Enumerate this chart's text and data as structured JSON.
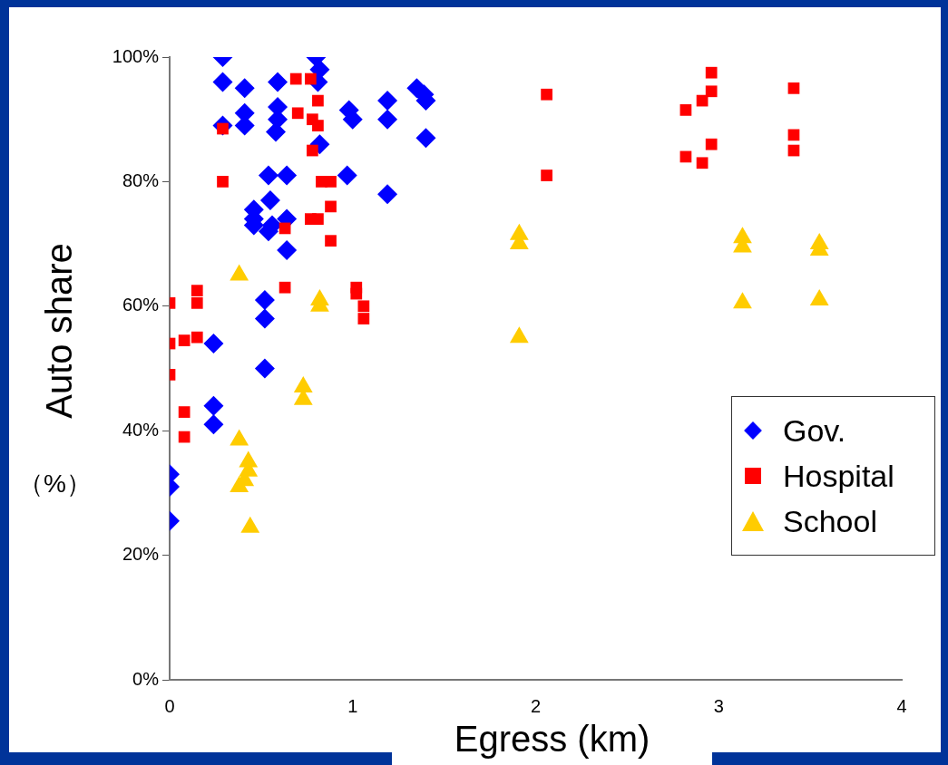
{
  "chart_data": {
    "type": "scatter",
    "xlabel": "Egress (km)",
    "ylabel": "Auto share",
    "annotations": [
      "（%）"
    ],
    "xlim": [
      0,
      4
    ],
    "xticks": [
      0,
      1,
      2,
      3,
      4
    ],
    "ylim": [
      0,
      100
    ],
    "yticks": [
      {
        "value": 0,
        "label": "0%"
      },
      {
        "value": 20,
        "label": "20%"
      },
      {
        "value": 40,
        "label": "40%"
      },
      {
        "value": 60,
        "label": "60%"
      },
      {
        "value": 80,
        "label": "80%"
      },
      {
        "value": 100,
        "label": "100%"
      }
    ],
    "grid": false,
    "legend": "right",
    "series": [
      {
        "name": "Gov.",
        "color": "#0000ff",
        "marker": "diamond",
        "x": [
          0.29,
          0.29,
          0.41,
          0.29,
          0.41,
          0.41,
          0.59,
          0.59,
          0.59,
          0.58,
          0.8,
          0.82,
          0.81,
          0.82,
          0.98,
          1.0,
          1.19,
          1.19,
          1.35,
          1.39,
          1.4,
          1.4,
          0.97,
          1.19,
          0.54,
          0.64,
          0.55,
          0.46,
          0.46,
          0.46,
          0.56,
          0.64,
          0.64,
          0.54,
          0.52,
          0.52,
          0.52,
          0.24,
          0.24,
          0.24,
          0,
          0,
          0
        ],
        "values": [
          100,
          96,
          95,
          89,
          91,
          89,
          96,
          92,
          90,
          88,
          100,
          98,
          96,
          86,
          91.5,
          90,
          93,
          90,
          95,
          94,
          93,
          87,
          81,
          78,
          81,
          81,
          77,
          75.5,
          74,
          73,
          73,
          74,
          69,
          72,
          61,
          58,
          50,
          54,
          44,
          41,
          33,
          31,
          25.5
        ]
      },
      {
        "name": "Hospital",
        "color": "#ff0000",
        "marker": "square",
        "x": [
          0.29,
          0.29,
          0.69,
          0.77,
          0.81,
          0.7,
          0.78,
          0.81,
          0.78,
          0.83,
          0.88,
          0.88,
          0.77,
          0.81,
          0.63,
          0.88,
          0.63,
          1.02,
          1.02,
          1.06,
          1.06,
          0.15,
          0.15,
          0,
          0,
          0.08,
          0.15,
          0,
          0.08,
          0.08,
          2.06,
          2.06,
          2.82,
          2.82,
          2.91,
          2.91,
          2.96,
          2.96,
          2.96,
          3.41,
          3.41,
          3.41
        ],
        "values": [
          88.5,
          80,
          96.5,
          96.5,
          93,
          91,
          90,
          89,
          85,
          80,
          80,
          76,
          74,
          74,
          72.5,
          70.5,
          63,
          63,
          62,
          60,
          58,
          62.5,
          60.5,
          60.5,
          54,
          54.5,
          55,
          49,
          43,
          39,
          94,
          81,
          91.5,
          84,
          93,
          83,
          97.5,
          94.5,
          86,
          95,
          87.5,
          85
        ]
      },
      {
        "name": "School",
        "color": "#ffcc00",
        "marker": "triangle",
        "x": [
          0.38,
          0.82,
          0.82,
          0.38,
          0.43,
          0.43,
          0.41,
          0.38,
          0.44,
          0.73,
          0.73,
          1.91,
          1.91,
          1.91,
          3.13,
          3.13,
          3.13,
          3.55,
          3.55,
          3.55
        ],
        "values": [
          65,
          61,
          60,
          38.5,
          35,
          33.5,
          32,
          31,
          24.5,
          47,
          45,
          71.5,
          70,
          55,
          71,
          69.5,
          60.5,
          70,
          69,
          61
        ]
      }
    ]
  }
}
